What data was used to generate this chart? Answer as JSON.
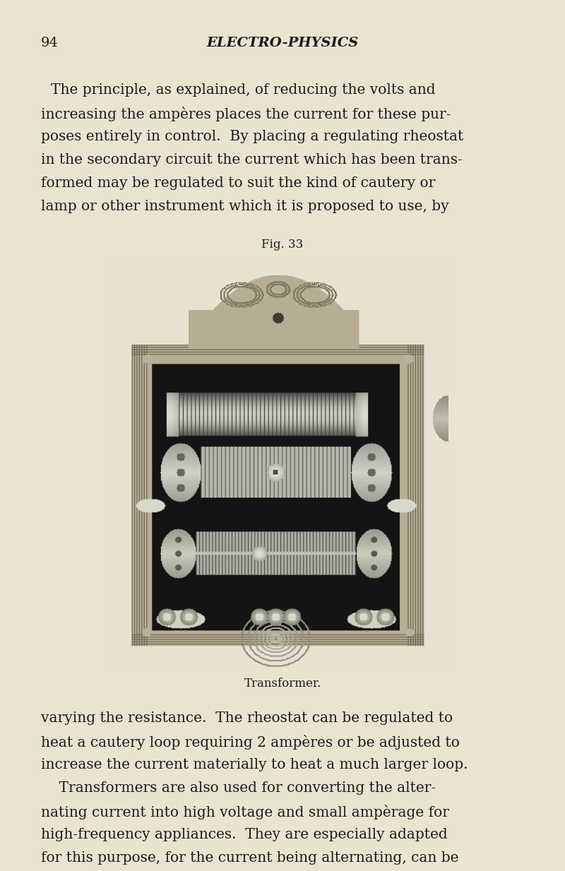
{
  "bg_color": "#e8e4d0",
  "page_number": "94",
  "header_title": "ELECTRO-PHYSICS",
  "fig_label": "Fig. 33",
  "fig_caption": "Transformer.",
  "text_color": "#1a1a1a",
  "para1_lines": [
    "The principle, as explained, of reducing the volts and",
    "increasing the ampères places the current for these pur-",
    "poses entirely in control.  By placing a regulating rheostat",
    "in the secondary circuit the current which has been trans-",
    "formed may be regulated to suit the kind of cautery or",
    "lamp or other instrument which it is proposed to use, by"
  ],
  "para2_lines": [
    "varying the resistance.  The rheostat can be regulated to",
    "heat a cautery loop requiring 2 ampères or be adjusted to",
    "increase the current materially to heat a much larger loop.",
    "    Transformers are also used for converting the alter-",
    "nating current into high voltage and small ampèrage for",
    "high-frequency appliances.  They are especially adapted",
    "for this purpose, for the current being alternating, can be"
  ],
  "header_fontsize": 14,
  "pagenum_fontsize": 14,
  "body_fontsize": 14.5,
  "fig_label_fontsize": 12,
  "caption_fontsize": 12
}
